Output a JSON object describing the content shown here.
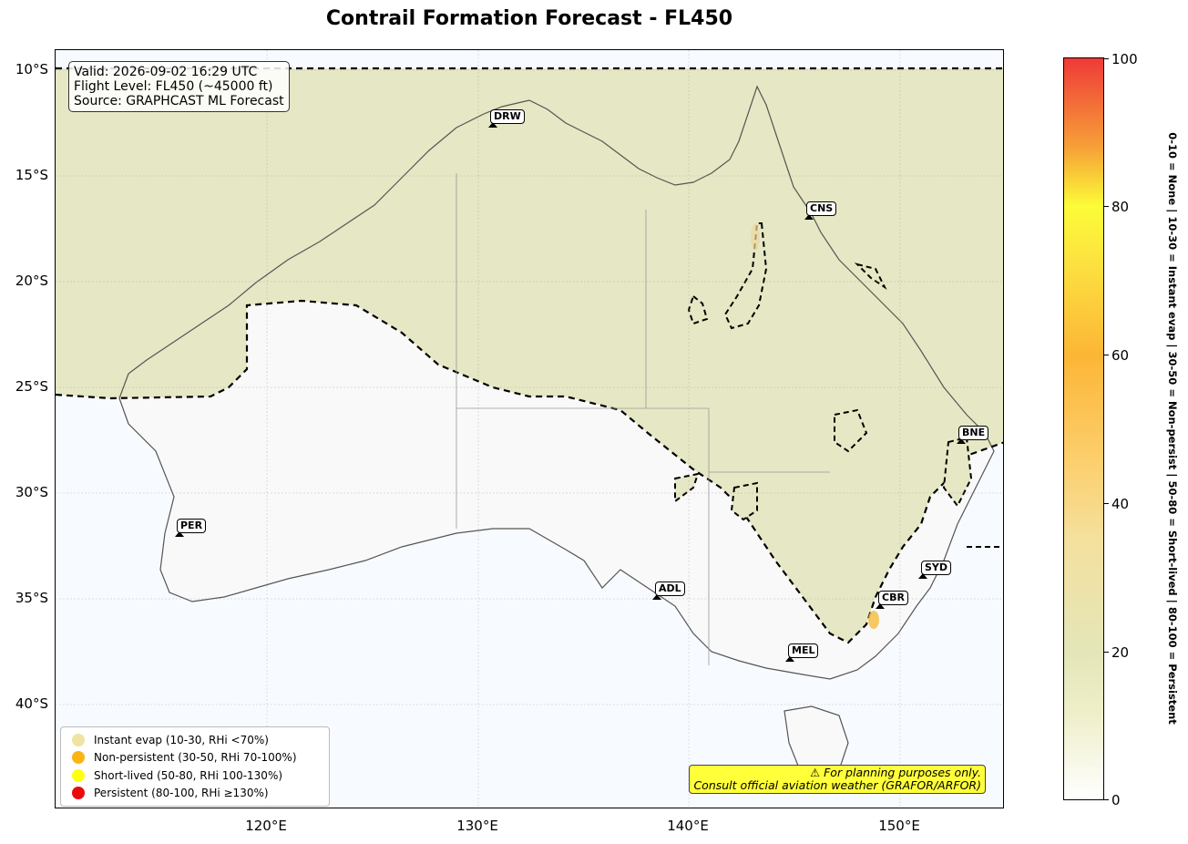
{
  "title": "Contrail Formation Forecast - FL450",
  "info": {
    "valid": "Valid: 2026-09-02 16:29 UTC",
    "flight_level": "Flight Level: FL450 (~45000 ft)",
    "source": "Source: GRAPHCAST ML Forecast"
  },
  "lat_labels": [
    "10°S",
    "15°S",
    "20°S",
    "25°S",
    "30°S",
    "35°S",
    "40°S"
  ],
  "lon_labels": [
    "120°E",
    "130°E",
    "140°E",
    "150°E"
  ],
  "cities": [
    {
      "code": "DRW"
    },
    {
      "code": "CNS"
    },
    {
      "code": "BNE"
    },
    {
      "code": "PER"
    },
    {
      "code": "SYD"
    },
    {
      "code": "ADL"
    },
    {
      "code": "CBR"
    },
    {
      "code": "MEL"
    }
  ],
  "legend": [
    {
      "label": "Instant evap (10-30, RHi <70%)",
      "color": "#f0e3a3"
    },
    {
      "label": "Non-persistent (30-50, RHi 70-100%)",
      "color": "#fcb415"
    },
    {
      "label": "Short-lived (50-80, RHi 100-130%)",
      "color": "#ffff10"
    },
    {
      "label": "Persistent (80-100, RHi ≥130%)",
      "color": "#e80c0c"
    }
  ],
  "disclaimer": {
    "line1": "⚠ For planning purposes only.",
    "line2": "Consult official aviation weather (GRAFOR/ARFOR)"
  },
  "colorbar": {
    "ticks": [
      "0",
      "20",
      "40",
      "60",
      "80",
      "100"
    ],
    "caption": "0-10 = None  |  10-30 = Instant evap  |  30-50 = Non-persist  |  50-80 = Short-lived  |  80-100 = Persistent"
  },
  "colors": {
    "ocean": "#f7fbff",
    "land_low": "#f9f9f9",
    "contrail_zone": "#e6e7c4",
    "coastline": "#555555",
    "contour": "#000000"
  }
}
